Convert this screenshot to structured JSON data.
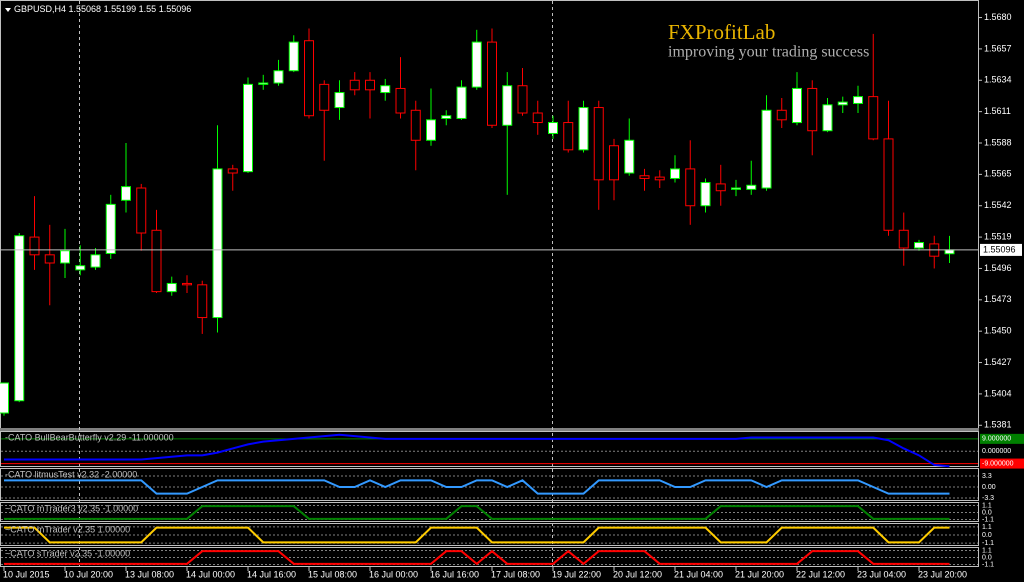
{
  "chart_data": [
    {
      "type": "candlestick",
      "title": "GBPUSD,H4",
      "annotations": [
        "FXProfitLab",
        "improving your trading success"
      ],
      "categories": [
        "10 Jul 2015",
        null,
        null,
        null,
        "10 Jul 20:00",
        null,
        null,
        null,
        "13 Jul 08:00",
        null,
        null,
        null,
        "14 Jul 00:00",
        null,
        null,
        null,
        "14 Jul 16:00",
        null,
        null,
        null,
        "15 Jul 08:00",
        null,
        null,
        null,
        "16 Jul 00:00",
        null,
        null,
        null,
        "16 Jul 16:00",
        null,
        null,
        null,
        "17 Jul 08:00",
        null,
        null,
        null,
        "19 Jul 22:00",
        null,
        null,
        null,
        "20 Jul 12:00",
        null,
        null,
        null,
        "21 Jul 04:00",
        null,
        null,
        null,
        "21 Jul 20:00",
        null,
        null,
        null,
        "22 Jul 12:00",
        null,
        null,
        null,
        "23 Jul 04:00",
        null,
        null,
        null,
        "23 Jul 20:00",
        null,
        null
      ],
      "open": [
        1.539,
        1.5399,
        1.5519,
        1.5506,
        1.55,
        1.5495,
        1.5497,
        1.5507,
        1.5546,
        1.5555,
        1.5524,
        1.5479,
        1.5485,
        1.5484,
        1.546,
        1.5569,
        1.5567,
        1.5631,
        1.5632,
        1.5641,
        1.5663,
        1.5631,
        1.5614,
        1.5634,
        1.5634,
        1.5625,
        1.5628,
        1.5612,
        1.559,
        1.5606,
        1.5606,
        1.5629,
        1.5662,
        1.5601,
        1.563,
        1.561,
        1.5595,
        1.5603,
        1.5583,
        1.5614,
        1.5586,
        1.5566,
        1.5564,
        1.5563,
        1.5562,
        1.5569,
        1.5542,
        1.5558,
        1.5554,
        1.5554,
        1.5555,
        1.5612,
        1.5603,
        1.5628,
        1.5597,
        1.5616,
        1.5617,
        1.5622,
        1.5591,
        1.5524,
        1.5511,
        1.5514,
        1.55068
      ],
      "high": [
        1.5412,
        1.5522,
        1.5549,
        1.5528,
        1.5525,
        1.5513,
        1.5511,
        1.555,
        1.5588,
        1.5558,
        1.5539,
        1.549,
        1.5491,
        1.5487,
        1.5601,
        1.5572,
        1.5636,
        1.5638,
        1.5649,
        1.5667,
        1.5672,
        1.5634,
        1.5634,
        1.564,
        1.564,
        1.5635,
        1.5651,
        1.5619,
        1.5628,
        1.5612,
        1.5634,
        1.5671,
        1.5672,
        1.564,
        1.5643,
        1.5619,
        1.5608,
        1.5619,
        1.5619,
        1.5619,
        1.5591,
        1.5606,
        1.5569,
        1.5568,
        1.5579,
        1.559,
        1.5562,
        1.5572,
        1.5561,
        1.5575,
        1.5623,
        1.5621,
        1.564,
        1.5634,
        1.5621,
        1.5622,
        1.563,
        1.5668,
        1.5619,
        1.5537,
        1.5517,
        1.552,
        1.55199
      ],
      "low": [
        1.5388,
        1.5398,
        1.5495,
        1.5469,
        1.5489,
        1.5491,
        1.5495,
        1.5503,
        1.5537,
        1.5509,
        1.5478,
        1.5476,
        1.5478,
        1.5448,
        1.5449,
        1.5553,
        1.5566,
        1.5627,
        1.563,
        1.564,
        1.5606,
        1.5575,
        1.5605,
        1.5623,
        1.5606,
        1.5619,
        1.5606,
        1.5568,
        1.5586,
        1.5601,
        1.5605,
        1.5627,
        1.5599,
        1.555,
        1.5608,
        1.5594,
        1.5591,
        1.5581,
        1.5581,
        1.5539,
        1.5546,
        1.5564,
        1.5553,
        1.5555,
        1.5559,
        1.5528,
        1.5537,
        1.5542,
        1.5549,
        1.555,
        1.5553,
        1.5599,
        1.5601,
        1.5579,
        1.5596,
        1.561,
        1.561,
        1.559,
        1.552,
        1.5498,
        1.5509,
        1.5496,
        1.55
      ],
      "close": [
        1.5412,
        1.552,
        1.5506,
        1.55,
        1.5509,
        1.5498,
        1.5506,
        1.5543,
        1.5556,
        1.5522,
        1.5479,
        1.5485,
        1.5484,
        1.546,
        1.5569,
        1.5566,
        1.5631,
        1.5632,
        1.5641,
        1.5662,
        1.5608,
        1.5612,
        1.5625,
        1.5627,
        1.5627,
        1.563,
        1.561,
        1.559,
        1.5605,
        1.5608,
        1.5629,
        1.5662,
        1.5601,
        1.563,
        1.561,
        1.5603,
        1.5603,
        1.5583,
        1.5614,
        1.5561,
        1.5561,
        1.559,
        1.5562,
        1.5561,
        1.5569,
        1.5542,
        1.5559,
        1.5553,
        1.5555,
        1.5557,
        1.5612,
        1.5605,
        1.5628,
        1.5597,
        1.5616,
        1.5618,
        1.5622,
        1.5591,
        1.5524,
        1.5511,
        1.5515,
        1.5505,
        1.55096
      ],
      "colors": {
        "bull_body": "#ffffff",
        "bull_wick": "#00ff00",
        "bear_body": "#000000",
        "bear_wick": "#ff0000"
      },
      "ylim": [
        1.5379,
        1.5687
      ],
      "yticks": [
        {
          "value": 1.568,
          "label": "1.5680"
        },
        1.5657,
        1.5634,
        1.5611,
        1.5588,
        1.5565,
        1.5542,
        1.5519,
        1.5496,
        1.5473,
        {
          "value": 1.545,
          "label": "1.5450"
        },
        1.5427,
        1.5404,
        1.5381
      ]
    },
    {
      "type": "line",
      "title": "-CATO BullBearButterfly v2.29 -11.000000",
      "color": "#0000ff",
      "values": [
        -6,
        -6,
        -6,
        -6,
        -6,
        -6,
        -6,
        -6,
        -6,
        -6,
        -5,
        -4,
        -3,
        -3,
        -1,
        2,
        5,
        7,
        8,
        9,
        10,
        11,
        12,
        11,
        10,
        9,
        9,
        9,
        9,
        9,
        9,
        9,
        9,
        9,
        9,
        9,
        9,
        9,
        9,
        9,
        9,
        9,
        9,
        9,
        9,
        9,
        9,
        9,
        9,
        10,
        10,
        10,
        10,
        10,
        10,
        10,
        10,
        10,
        8,
        2,
        -3,
        -10,
        -11
      ],
      "ylim": [
        -11.5,
        14
      ],
      "yticks": [
        {
          "value": 9,
          "label": "9.000000"
        },
        {
          "value": 0,
          "label": "0.000000"
        },
        {
          "value": -9,
          "label": "-9.000000"
        }
      ],
      "level_colors": [
        "#008000",
        "#000000",
        "#ff0000"
      ]
    },
    {
      "type": "line",
      "title": "-CATO litmusTest v2.32 -2.00000",
      "color": "#3399ff",
      "values": [
        2,
        2,
        2,
        2,
        2,
        2,
        2,
        2,
        2,
        2,
        -2,
        -2,
        -2,
        0,
        2,
        2,
        2,
        2,
        2,
        2,
        2,
        2,
        0,
        0,
        2,
        0,
        2,
        2,
        2,
        0,
        0,
        2,
        2,
        0,
        2,
        -2,
        -2,
        -2,
        -2,
        2,
        2,
        2,
        2,
        2,
        0,
        0,
        2,
        2,
        2,
        2,
        0,
        2,
        2,
        2,
        2,
        2,
        2,
        0,
        -2,
        -2,
        -2,
        -2,
        -2
      ],
      "ylim": [
        -4.2,
        5.4
      ],
      "yticks": [
        3.3,
        {
          "value": 0,
          "label": "0.00"
        },
        -3.3
      ],
      "grid": true
    },
    {
      "type": "line",
      "title": "~CATO mTrader3 v2.35 -1.00000",
      "color": "#008000",
      "values": [
        -1,
        -1,
        -1,
        -1,
        -1,
        -1,
        -1,
        -1,
        -1,
        -1,
        -1,
        -1,
        -1,
        1,
        1,
        1,
        1,
        1,
        1,
        1,
        -1,
        -1,
        -1,
        -1,
        -1,
        -1,
        -1,
        -1,
        -1,
        -1,
        1,
        1,
        -1,
        -1,
        -1,
        -1,
        -1,
        -1,
        -1,
        -1,
        -1,
        -1,
        -1,
        -1,
        -1,
        -1,
        -1,
        1,
        1,
        1,
        1,
        1,
        1,
        1,
        1,
        1,
        1,
        -1,
        -1,
        -1,
        -1,
        -1,
        -1
      ],
      "ylim": [
        -1.5,
        1.5
      ],
      "yticks": [
        1.1,
        {
          "value": 0,
          "label": "0.0"
        },
        -1.1
      ],
      "grid": true
    },
    {
      "type": "line",
      "title": "~CATO mTrader v2.35 1.00000",
      "color": "#ffcc00",
      "values": [
        1,
        1,
        1,
        -1,
        -1,
        -1,
        -1,
        -1,
        -1,
        -1,
        1,
        1,
        1,
        1,
        1,
        1,
        1,
        -1,
        -1,
        -1,
        -1,
        -1,
        -1,
        -1,
        -1,
        -1,
        -1,
        -1,
        1,
        1,
        1,
        1,
        -1,
        -1,
        -1,
        -1,
        -1,
        -1,
        -1,
        1,
        1,
        1,
        1,
        1,
        1,
        1,
        1,
        -1,
        -1,
        -1,
        -1,
        1,
        1,
        1,
        1,
        1,
        1,
        1,
        -1,
        -1,
        -1,
        1,
        1
      ],
      "ylim": [
        -1.5,
        1.5
      ],
      "yticks": [
        1.1,
        {
          "value": 0,
          "label": "0.0"
        },
        -1.1
      ],
      "grid": true
    },
    {
      "type": "line",
      "title": "~CATO sTrader v2.35 -1.00000",
      "color": "#ff0000",
      "values": [
        -1,
        -1,
        -1,
        -1,
        -1,
        -1,
        -1,
        -1,
        -1,
        -1,
        -1,
        -1,
        -1,
        1,
        1,
        1,
        1,
        1,
        1,
        -1,
        -1,
        -1,
        -1,
        -1,
        -1,
        -1,
        -1,
        -1,
        -1,
        1,
        1,
        -1,
        1,
        -1,
        -1,
        -1,
        -1,
        1,
        -1,
        1,
        1,
        1,
        1,
        -1,
        -1,
        -1,
        -1,
        -1,
        -1,
        -1,
        -1,
        -1,
        -1,
        1,
        1,
        1,
        1,
        -1,
        -1,
        -1,
        -1,
        -1,
        -1
      ],
      "ylim": [
        -1.5,
        1.5
      ],
      "yticks": [
        1.1,
        {
          "value": 0,
          "label": "0.0"
        },
        -1.1
      ],
      "grid": true
    }
  ]
}
